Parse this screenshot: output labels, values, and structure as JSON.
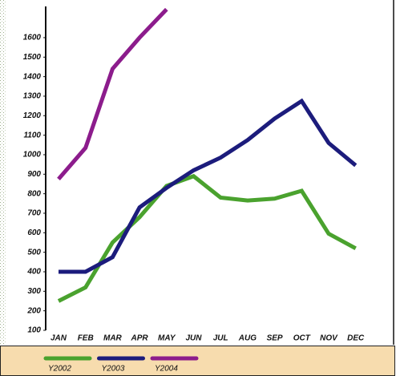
{
  "chart_data": {
    "type": "line",
    "categories": [
      "JAN",
      "FEB",
      "MAR",
      "APR",
      "MAY",
      "JUN",
      "JUL",
      "AUG",
      "SEP",
      "OCT",
      "NOV",
      "DEC"
    ],
    "series": [
      {
        "name": "Y2002",
        "color": "#4aa22e",
        "values": [
          250,
          320,
          550,
          680,
          840,
          890,
          780,
          765,
          775,
          815,
          595,
          520
        ]
      },
      {
        "name": "Y2003",
        "color": "#1c1c7c",
        "values": [
          400,
          400,
          475,
          730,
          830,
          920,
          985,
          1075,
          1185,
          1275,
          1060,
          945
        ]
      },
      {
        "name": "Y2004",
        "color": "#8c1c8c",
        "values": [
          875,
          1035,
          1440,
          1600,
          1745,
          null,
          null,
          null,
          null,
          null,
          null,
          null
        ]
      }
    ],
    "ylim": [
      100,
      1760
    ],
    "yticks": [
      100,
      200,
      300,
      400,
      500,
      600,
      700,
      800,
      900,
      1000,
      1100,
      1200,
      1300,
      1400,
      1500,
      1600
    ],
    "legend": "bottom"
  }
}
